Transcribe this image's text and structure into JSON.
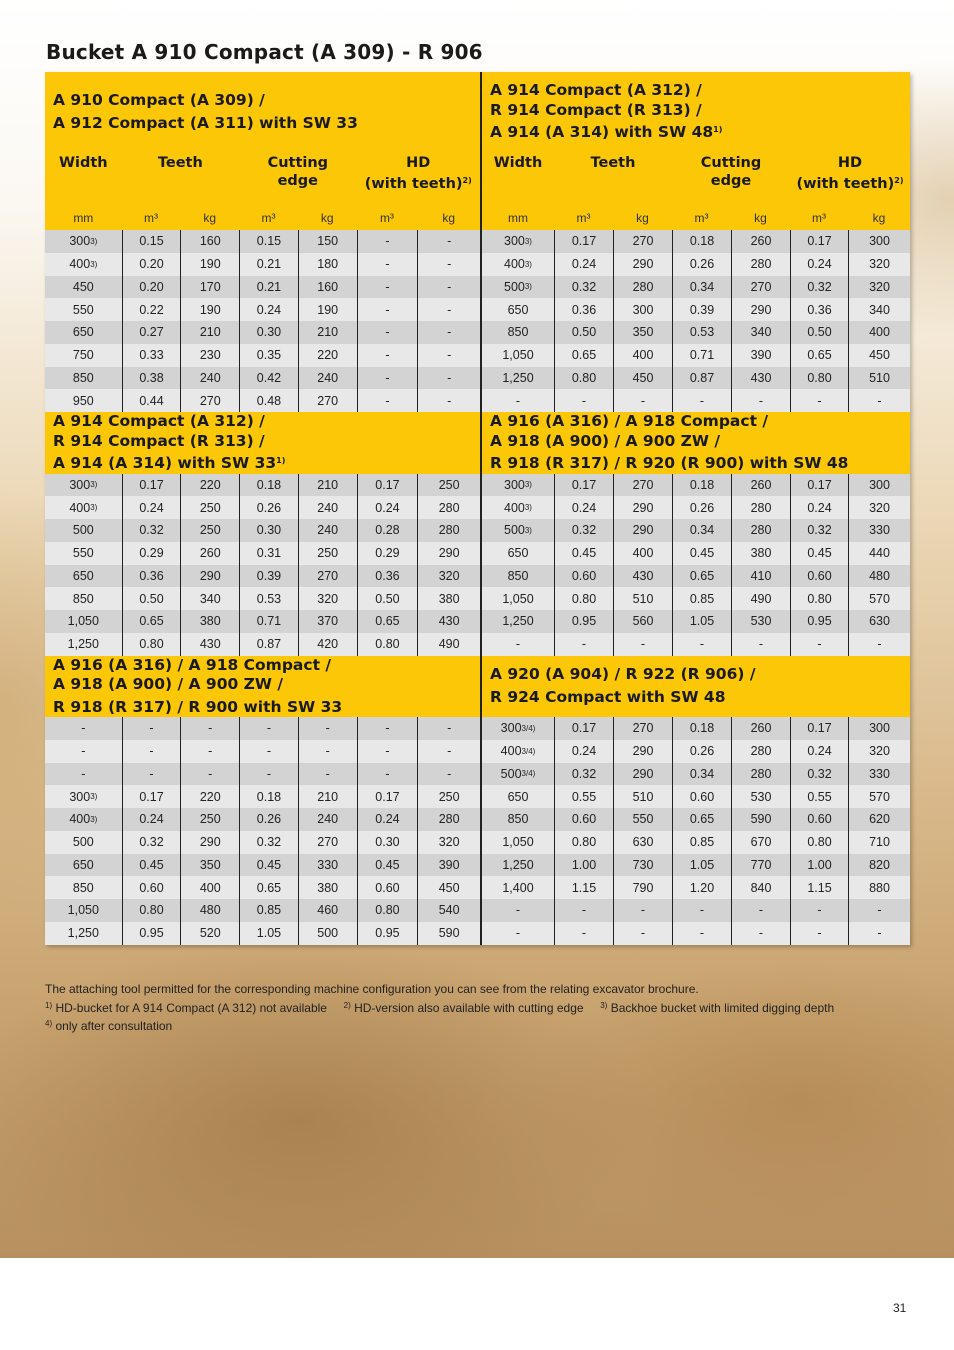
{
  "title": "Bucket A 910 Compact (A 309) - R 906",
  "column_headers": {
    "width": "Width",
    "teeth": "Teeth",
    "cutting": "Cutting\nedge",
    "hd": "HD\n(with teeth)",
    "hd_sup": "2)"
  },
  "units": [
    "mm",
    "m³",
    "kg",
    "m³",
    "kg",
    "m³",
    "kg"
  ],
  "colors": {
    "header_yellow": "#fbc707",
    "row_dark": "#d3d3d3",
    "row_light": "#e8e8e8"
  },
  "sections": [
    {
      "left": {
        "title": "A 910 Compact (A 309) /\nA 912 Compact (A 311) with SW 33",
        "title_sup": "",
        "show_columns": true,
        "rows": [
          {
            "w": "300",
            "sup": "3)",
            "c": [
              "0.15",
              "160",
              "0.15",
              "150",
              "-",
              "-"
            ]
          },
          {
            "w": "400",
            "sup": "3)",
            "c": [
              "0.20",
              "190",
              "0.21",
              "180",
              "-",
              "-"
            ]
          },
          {
            "w": "450",
            "sup": "",
            "c": [
              "0.20",
              "170",
              "0.21",
              "160",
              "-",
              "-"
            ]
          },
          {
            "w": "550",
            "sup": "",
            "c": [
              "0.22",
              "190",
              "0.24",
              "190",
              "-",
              "-"
            ]
          },
          {
            "w": "650",
            "sup": "",
            "c": [
              "0.27",
              "210",
              "0.30",
              "210",
              "-",
              "-"
            ]
          },
          {
            "w": "750",
            "sup": "",
            "c": [
              "0.33",
              "230",
              "0.35",
              "220",
              "-",
              "-"
            ]
          },
          {
            "w": "850",
            "sup": "",
            "c": [
              "0.38",
              "240",
              "0.42",
              "240",
              "-",
              "-"
            ]
          },
          {
            "w": "950",
            "sup": "",
            "c": [
              "0.44",
              "270",
              "0.48",
              "270",
              "-",
              "-"
            ]
          }
        ]
      },
      "right": {
        "title": "A 914 Compact (A 312) /\nR 914 Compact (R 313) /\nA 914 (A 314) with SW 48",
        "title_sup": "1)",
        "show_columns": true,
        "rows": [
          {
            "w": "300",
            "sup": "3)",
            "c": [
              "0.17",
              "270",
              "0.18",
              "260",
              "0.17",
              "300"
            ]
          },
          {
            "w": "400",
            "sup": "3)",
            "c": [
              "0.24",
              "290",
              "0.26",
              "280",
              "0.24",
              "320"
            ]
          },
          {
            "w": "500",
            "sup": "3)",
            "c": [
              "0.32",
              "280",
              "0.34",
              "270",
              "0.32",
              "320"
            ]
          },
          {
            "w": "650",
            "sup": "",
            "c": [
              "0.36",
              "300",
              "0.39",
              "290",
              "0.36",
              "340"
            ]
          },
          {
            "w": "850",
            "sup": "",
            "c": [
              "0.50",
              "350",
              "0.53",
              "340",
              "0.50",
              "400"
            ]
          },
          {
            "w": "1,050",
            "sup": "",
            "c": [
              "0.65",
              "400",
              "0.71",
              "390",
              "0.65",
              "450"
            ]
          },
          {
            "w": "1,250",
            "sup": "",
            "c": [
              "0.80",
              "450",
              "0.87",
              "430",
              "0.80",
              "510"
            ]
          },
          {
            "w": "-",
            "sup": "",
            "c": [
              "-",
              "-",
              "-",
              "-",
              "-",
              "-"
            ]
          }
        ]
      }
    },
    {
      "left": {
        "title": "A 914 Compact (A 312) /\nR 914 Compact (R 313) /\nA 914 (A 314) with SW 33",
        "title_sup": "1)",
        "show_columns": false,
        "rows": [
          {
            "w": "300",
            "sup": "3)",
            "c": [
              "0.17",
              "220",
              "0.18",
              "210",
              "0.17",
              "250"
            ]
          },
          {
            "w": "400",
            "sup": "3)",
            "c": [
              "0.24",
              "250",
              "0.26",
              "240",
              "0.24",
              "280"
            ]
          },
          {
            "w": "500",
            "sup": "",
            "c": [
              "0.32",
              "250",
              "0.30",
              "240",
              "0.28",
              "280"
            ]
          },
          {
            "w": "550",
            "sup": "",
            "c": [
              "0.29",
              "260",
              "0.31",
              "250",
              "0.29",
              "290"
            ]
          },
          {
            "w": "650",
            "sup": "",
            "c": [
              "0.36",
              "290",
              "0.39",
              "270",
              "0.36",
              "320"
            ]
          },
          {
            "w": "850",
            "sup": "",
            "c": [
              "0.50",
              "340",
              "0.53",
              "320",
              "0.50",
              "380"
            ]
          },
          {
            "w": "1,050",
            "sup": "",
            "c": [
              "0.65",
              "380",
              "0.71",
              "370",
              "0.65",
              "430"
            ]
          },
          {
            "w": "1,250",
            "sup": "",
            "c": [
              "0.80",
              "430",
              "0.87",
              "420",
              "0.80",
              "490"
            ]
          }
        ]
      },
      "right": {
        "title": "A 916 (A 316) / A 918 Compact /\nA 918 (A 900) / A 900 ZW /\nR 918 (R 317) / R 920 (R 900) with SW 48",
        "title_sup": "",
        "show_columns": false,
        "rows": [
          {
            "w": "300",
            "sup": "3)",
            "c": [
              "0.17",
              "270",
              "0.18",
              "260",
              "0.17",
              "300"
            ]
          },
          {
            "w": "400",
            "sup": "3)",
            "c": [
              "0.24",
              "290",
              "0.26",
              "280",
              "0.24",
              "320"
            ]
          },
          {
            "w": "500",
            "sup": "3)",
            "c": [
              "0.32",
              "290",
              "0.34",
              "280",
              "0.32",
              "330"
            ]
          },
          {
            "w": "650",
            "sup": "",
            "c": [
              "0.45",
              "400",
              "0.45",
              "380",
              "0.45",
              "440"
            ]
          },
          {
            "w": "850",
            "sup": "",
            "c": [
              "0.60",
              "430",
              "0.65",
              "410",
              "0.60",
              "480"
            ]
          },
          {
            "w": "1,050",
            "sup": "",
            "c": [
              "0.80",
              "510",
              "0.85",
              "490",
              "0.80",
              "570"
            ]
          },
          {
            "w": "1,250",
            "sup": "",
            "c": [
              "0.95",
              "560",
              "1.05",
              "530",
              "0.95",
              "630"
            ]
          },
          {
            "w": "-",
            "sup": "",
            "c": [
              "-",
              "-",
              "-",
              "-",
              "-",
              "-"
            ]
          }
        ]
      }
    },
    {
      "left": {
        "title": "A 916 (A 316) / A 918 Compact /\nA 918 (A 900) / A 900 ZW /\nR 918 (R 317) / R 900 with SW 33",
        "title_sup": "",
        "show_columns": false,
        "rows": [
          {
            "w": "-",
            "sup": "",
            "c": [
              "-",
              "-",
              "-",
              "-",
              "-",
              "-"
            ]
          },
          {
            "w": "-",
            "sup": "",
            "c": [
              "-",
              "-",
              "-",
              "-",
              "-",
              "-"
            ]
          },
          {
            "w": "-",
            "sup": "",
            "c": [
              "-",
              "-",
              "-",
              "-",
              "-",
              "-"
            ]
          },
          {
            "w": "300",
            "sup": "3)",
            "c": [
              "0.17",
              "220",
              "0.18",
              "210",
              "0.17",
              "250"
            ]
          },
          {
            "w": "400",
            "sup": "3)",
            "c": [
              "0.24",
              "250",
              "0.26",
              "240",
              "0.24",
              "280"
            ]
          },
          {
            "w": "500",
            "sup": "",
            "c": [
              "0.32",
              "290",
              "0.32",
              "270",
              "0.30",
              "320"
            ]
          },
          {
            "w": "650",
            "sup": "",
            "c": [
              "0.45",
              "350",
              "0.45",
              "330",
              "0.45",
              "390"
            ]
          },
          {
            "w": "850",
            "sup": "",
            "c": [
              "0.60",
              "400",
              "0.65",
              "380",
              "0.60",
              "450"
            ]
          },
          {
            "w": "1,050",
            "sup": "",
            "c": [
              "0.80",
              "480",
              "0.85",
              "460",
              "0.80",
              "540"
            ]
          },
          {
            "w": "1,250",
            "sup": "",
            "c": [
              "0.95",
              "520",
              "1.05",
              "500",
              "0.95",
              "590"
            ]
          }
        ]
      },
      "right": {
        "title": "A 920 (A 904) / R 922 (R 906) /\nR 924 Compact with SW 48",
        "title_sup": "",
        "show_columns": false,
        "rows": [
          {
            "w": "300",
            "sup": "3/4)",
            "c": [
              "0.17",
              "270",
              "0.18",
              "260",
              "0.17",
              "300"
            ]
          },
          {
            "w": "400",
            "sup": "3/4)",
            "c": [
              "0.24",
              "290",
              "0.26",
              "280",
              "0.24",
              "320"
            ]
          },
          {
            "w": "500",
            "sup": "3/4)",
            "c": [
              "0.32",
              "290",
              "0.34",
              "280",
              "0.32",
              "330"
            ]
          },
          {
            "w": "650",
            "sup": "",
            "c": [
              "0.55",
              "510",
              "0.60",
              "530",
              "0.55",
              "570"
            ]
          },
          {
            "w": "850",
            "sup": "",
            "c": [
              "0.60",
              "550",
              "0.65",
              "590",
              "0.60",
              "620"
            ]
          },
          {
            "w": "1,050",
            "sup": "",
            "c": [
              "0.80",
              "630",
              "0.85",
              "670",
              "0.80",
              "710"
            ]
          },
          {
            "w": "1,250",
            "sup": "",
            "c": [
              "1.00",
              "730",
              "1.05",
              "770",
              "1.00",
              "820"
            ]
          },
          {
            "w": "1,400",
            "sup": "",
            "c": [
              "1.15",
              "790",
              "1.20",
              "840",
              "1.15",
              "880"
            ]
          },
          {
            "w": "-",
            "sup": "",
            "c": [
              "-",
              "-",
              "-",
              "-",
              "-",
              "-"
            ]
          },
          {
            "w": "-",
            "sup": "",
            "c": [
              "-",
              "-",
              "-",
              "-",
              "-",
              "-"
            ]
          }
        ]
      }
    }
  ],
  "notes": {
    "intro": "The attaching tool permitted for the corresponding machine configuration you can see from the relating excavator brochure.",
    "items": [
      {
        "mark": "1)",
        "text": "HD-bucket for A 914 Compact (A 312) not available"
      },
      {
        "mark": "2)",
        "text": "HD-version also available with cutting edge"
      },
      {
        "mark": "3)",
        "text": "Backhoe bucket with limited digging depth"
      },
      {
        "mark": "4)",
        "text": "only after consultation"
      }
    ]
  },
  "page_number": "31"
}
